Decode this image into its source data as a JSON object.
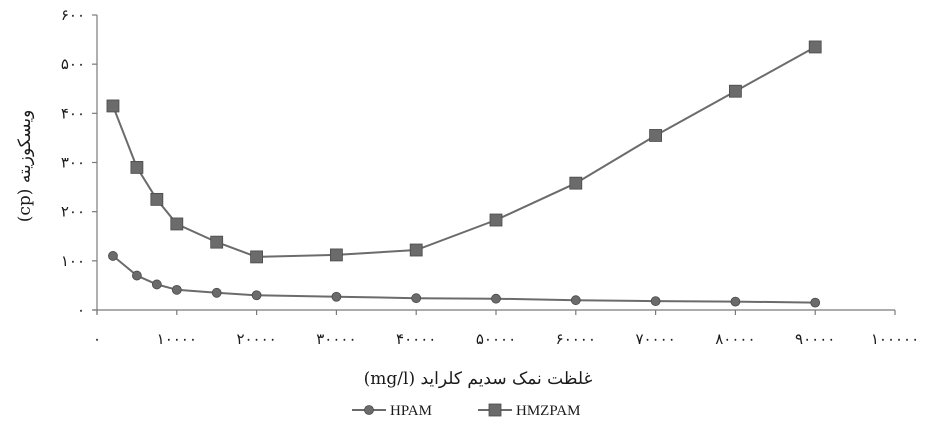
{
  "chart_data": {
    "type": "line",
    "xlabel": "غلظت نمک سدیم کلراید (mg/l)",
    "ylabel": "ویسکوزیته (cp)",
    "xlim": [
      0,
      100000
    ],
    "ylim": [
      0,
      600
    ],
    "x_ticks": [
      0,
      10000,
      20000,
      30000,
      40000,
      50000,
      60000,
      70000,
      80000,
      90000,
      100000
    ],
    "x_tick_labels": [
      "۰",
      "۱۰۰۰۰",
      "۲۰۰۰۰",
      "۳۰۰۰۰",
      "۴۰۰۰۰",
      "۵۰۰۰۰",
      "۶۰۰۰۰",
      "۷۰۰۰۰",
      "۸۰۰۰۰",
      "۹۰۰۰۰",
      "۱۰۰۰۰۰"
    ],
    "y_ticks": [
      0,
      100,
      200,
      300,
      400,
      500,
      600
    ],
    "y_tick_labels": [
      "۰",
      "۱۰۰",
      "۲۰۰",
      "۳۰۰",
      "۴۰۰",
      "۵۰۰",
      "۶۰۰"
    ],
    "grid": false,
    "legend_position": "bottom",
    "series": [
      {
        "name": "HPAM",
        "marker": "circle",
        "color": "#6b6b6b",
        "points": [
          [
            2000,
            110
          ],
          [
            5000,
            70
          ],
          [
            7500,
            52
          ],
          [
            10000,
            41
          ],
          [
            15000,
            35
          ],
          [
            20000,
            30
          ],
          [
            30000,
            27
          ],
          [
            40000,
            24
          ],
          [
            50000,
            23
          ],
          [
            60000,
            20
          ],
          [
            70000,
            18
          ],
          [
            80000,
            17
          ],
          [
            90000,
            15
          ]
        ]
      },
      {
        "name": "HMZPAM",
        "marker": "square",
        "color": "#6b6b6b",
        "points": [
          [
            2000,
            415
          ],
          [
            5000,
            290
          ],
          [
            7500,
            225
          ],
          [
            10000,
            175
          ],
          [
            15000,
            138
          ],
          [
            20000,
            108
          ],
          [
            30000,
            112
          ],
          [
            40000,
            122
          ],
          [
            50000,
            183
          ],
          [
            60000,
            258
          ],
          [
            70000,
            355
          ],
          [
            80000,
            445
          ],
          [
            90000,
            535
          ]
        ]
      }
    ]
  }
}
